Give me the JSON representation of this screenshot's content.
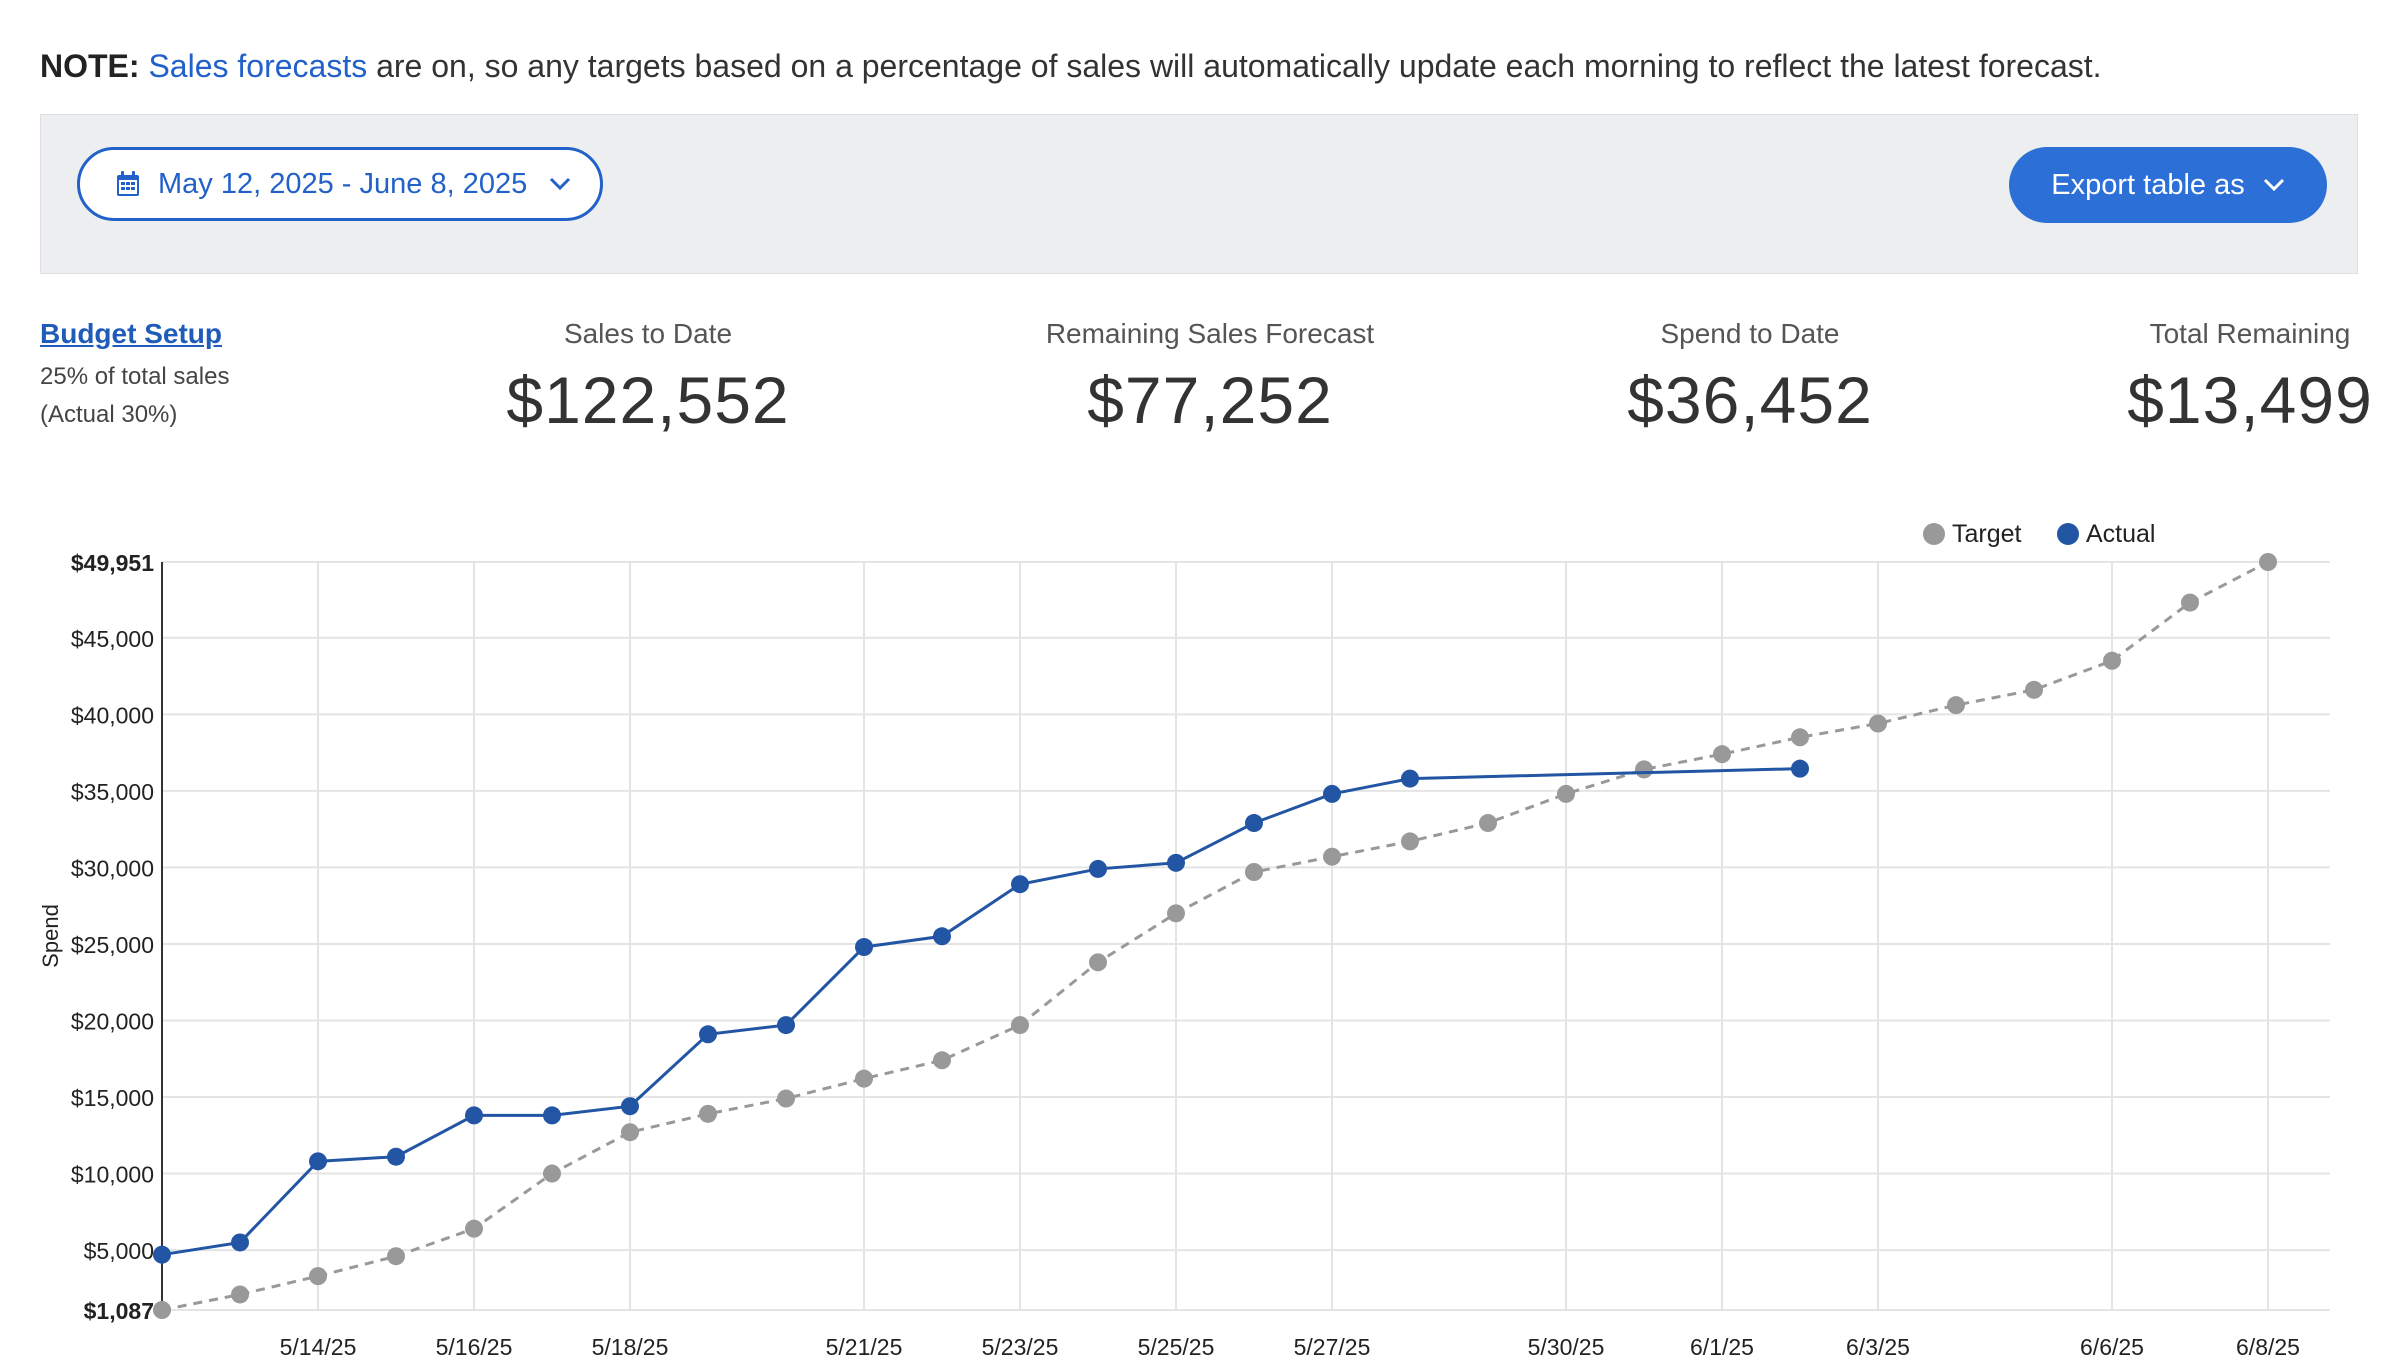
{
  "note": {
    "prefix": "NOTE:",
    "link": "Sales forecasts",
    "rest": " are on, so any targets based on a percentage of sales will automatically update each morning to reflect the latest forecast."
  },
  "toolbar": {
    "date_range": "May 12, 2025 - June 8, 2025",
    "export_label": "Export table as",
    "accent_color": "#2161c9"
  },
  "budget": {
    "link": "Budget Setup",
    "line1": "25% of total sales",
    "line2": "(Actual 30%)"
  },
  "metrics": [
    {
      "label": "Sales to Date",
      "value": "$122,552"
    },
    {
      "label": "Remaining Sales Forecast",
      "value": "$77,252"
    },
    {
      "label": "Spend to Date",
      "value": "$36,452"
    },
    {
      "label": "Total Remaining",
      "value": "$13,499"
    }
  ],
  "chart_data": {
    "type": "line",
    "xlabel": "",
    "ylabel": "Spend",
    "ylim": [
      1087,
      49951
    ],
    "y_ticks": [
      {
        "value": 1087,
        "label": "$1,087"
      },
      {
        "value": 5000,
        "label": "$5,000"
      },
      {
        "value": 10000,
        "label": "$10,000"
      },
      {
        "value": 15000,
        "label": "$15,000"
      },
      {
        "value": 20000,
        "label": "$20,000"
      },
      {
        "value": 25000,
        "label": "$25,000"
      },
      {
        "value": 30000,
        "label": "$30,000"
      },
      {
        "value": 35000,
        "label": "$35,000"
      },
      {
        "value": 40000,
        "label": "$40,000"
      },
      {
        "value": 45000,
        "label": "$45,000"
      },
      {
        "value": 49951,
        "label": "$49,951"
      }
    ],
    "x_ticks": [
      "5/14/25",
      "5/16/25",
      "5/18/25",
      "5/21/25",
      "5/23/25",
      "5/25/25",
      "5/27/25",
      "5/30/25",
      "6/1/25",
      "6/3/25",
      "6/6/25",
      "6/8/25"
    ],
    "legend_position": "top-right",
    "grid": true,
    "series": [
      {
        "name": "Target",
        "color": "#999999",
        "dashed": true,
        "values": [
          1087,
          2100,
          3300,
          4600,
          6400,
          10000,
          12700,
          13900,
          14900,
          16200,
          17400,
          19700,
          23800,
          27000,
          29700,
          30700,
          31700,
          32900,
          34800,
          36400,
          37400,
          38500,
          39400,
          40600,
          41600,
          43500,
          47300,
          49951
        ]
      },
      {
        "name": "Actual",
        "color": "#2255a4",
        "dashed": false,
        "values": [
          4700,
          5500,
          10800,
          11100,
          13800,
          13800,
          14400,
          19100,
          19700,
          24800,
          25500,
          28900,
          29900,
          30300,
          32900,
          34800,
          35800,
          null,
          null,
          null,
          null,
          36452
        ]
      }
    ]
  }
}
